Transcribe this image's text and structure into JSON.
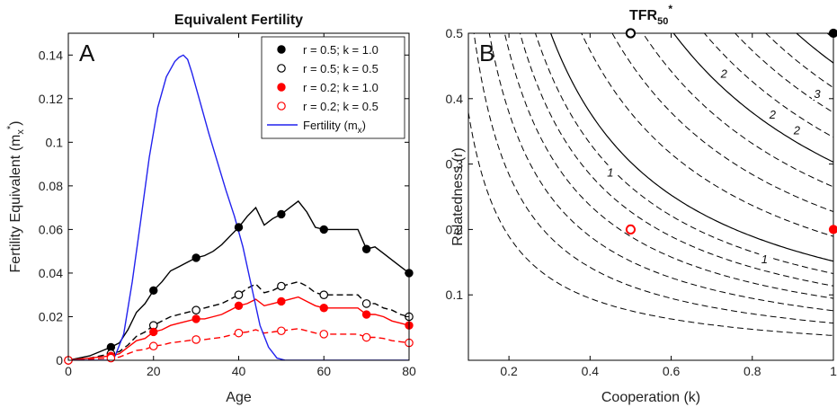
{
  "chart_data": [
    {
      "panel": "A",
      "type": "line",
      "title": "Equivalent Fertility",
      "xlabel": "Age",
      "ylabel": "Fertility Equivalent (m",
      "ylabel_sub": "x",
      "ylabel_sup": "*",
      "ylabel_end": ")",
      "xlim": [
        0,
        80
      ],
      "ylim": [
        0,
        0.15
      ],
      "xticks": [
        0,
        20,
        40,
        60,
        80
      ],
      "yticks": [
        0,
        0.02,
        0.04,
        0.06,
        0.08,
        0.1,
        0.12,
        0.14
      ],
      "ytick_labels": [
        "0",
        "0.02",
        "0.04",
        "0.06",
        "0.08",
        "0.1",
        "0.12",
        "0.14"
      ],
      "legend_position": "top-right",
      "series": [
        {
          "name": "r = 0.5; k = 1.0",
          "color": "#000000",
          "dash": false,
          "marker": "filled",
          "x": [
            0,
            5,
            10,
            12,
            14,
            16,
            18,
            20,
            22,
            24,
            26,
            28,
            30,
            32,
            34,
            36,
            38,
            40,
            42,
            44,
            46,
            48,
            50,
            52,
            54,
            56,
            58,
            60,
            62,
            64,
            66,
            68,
            70,
            72,
            74,
            76,
            78,
            80
          ],
          "y": [
            0,
            0.002,
            0.006,
            0.008,
            0.014,
            0.022,
            0.026,
            0.032,
            0.036,
            0.041,
            0.043,
            0.045,
            0.047,
            0.048,
            0.05,
            0.053,
            0.057,
            0.061,
            0.066,
            0.07,
            0.062,
            0.065,
            0.067,
            0.07,
            0.073,
            0.068,
            0.061,
            0.06,
            0.06,
            0.06,
            0.06,
            0.06,
            0.051,
            0.052,
            0.049,
            0.046,
            0.043,
            0.04
          ],
          "marker_x": [
            0,
            10,
            20,
            30,
            40,
            50,
            60,
            70,
            80
          ],
          "marker_y": [
            0,
            0.006,
            0.032,
            0.047,
            0.061,
            0.067,
            0.06,
            0.051,
            0.04
          ]
        },
        {
          "name": "r = 0.5; k = 0.5",
          "color": "#000000",
          "dash": true,
          "marker": "open",
          "x": [
            0,
            5,
            10,
            12,
            14,
            16,
            18,
            20,
            22,
            24,
            26,
            28,
            30,
            32,
            34,
            36,
            38,
            40,
            42,
            44,
            46,
            48,
            50,
            52,
            54,
            56,
            58,
            60,
            62,
            64,
            66,
            68,
            70,
            72,
            74,
            76,
            78,
            80
          ],
          "y": [
            0,
            0.001,
            0.003,
            0.004,
            0.007,
            0.011,
            0.013,
            0.016,
            0.018,
            0.02,
            0.021,
            0.022,
            0.023,
            0.024,
            0.025,
            0.026,
            0.028,
            0.03,
            0.033,
            0.035,
            0.031,
            0.032,
            0.034,
            0.035,
            0.036,
            0.034,
            0.031,
            0.03,
            0.03,
            0.03,
            0.03,
            0.03,
            0.026,
            0.026,
            0.024,
            0.023,
            0.021,
            0.02
          ],
          "marker_x": [
            0,
            10,
            20,
            30,
            40,
            50,
            60,
            70,
            80
          ],
          "marker_y": [
            0,
            0.003,
            0.016,
            0.023,
            0.03,
            0.034,
            0.03,
            0.026,
            0.02
          ]
        },
        {
          "name": "r = 0.2; k = 1.0",
          "color": "#ff0000",
          "dash": false,
          "marker": "filled",
          "x": [
            0,
            5,
            10,
            12,
            14,
            16,
            18,
            20,
            22,
            24,
            26,
            28,
            30,
            32,
            34,
            36,
            38,
            40,
            42,
            44,
            46,
            48,
            50,
            52,
            54,
            56,
            58,
            60,
            62,
            64,
            66,
            68,
            70,
            72,
            74,
            76,
            78,
            80
          ],
          "y": [
            0,
            0.001,
            0.002,
            0.003,
            0.006,
            0.009,
            0.01,
            0.013,
            0.014,
            0.016,
            0.017,
            0.018,
            0.019,
            0.019,
            0.02,
            0.021,
            0.023,
            0.025,
            0.026,
            0.028,
            0.025,
            0.026,
            0.027,
            0.028,
            0.029,
            0.027,
            0.025,
            0.024,
            0.024,
            0.024,
            0.024,
            0.024,
            0.021,
            0.021,
            0.02,
            0.018,
            0.017,
            0.016
          ],
          "marker_x": [
            0,
            10,
            20,
            30,
            40,
            50,
            60,
            70,
            80
          ],
          "marker_y": [
            0,
            0.002,
            0.013,
            0.019,
            0.025,
            0.027,
            0.024,
            0.021,
            0.016
          ]
        },
        {
          "name": "r = 0.2; k = 0.5",
          "color": "#ff0000",
          "dash": true,
          "marker": "open",
          "x": [
            0,
            5,
            10,
            12,
            14,
            16,
            18,
            20,
            22,
            24,
            26,
            28,
            30,
            32,
            34,
            36,
            38,
            40,
            42,
            44,
            46,
            48,
            50,
            52,
            54,
            56,
            58,
            60,
            62,
            64,
            66,
            68,
            70,
            72,
            74,
            76,
            78,
            80
          ],
          "y": [
            0,
            0.0005,
            0.001,
            0.0015,
            0.003,
            0.0045,
            0.005,
            0.0065,
            0.007,
            0.008,
            0.0085,
            0.009,
            0.0095,
            0.0095,
            0.01,
            0.0105,
            0.0115,
            0.0125,
            0.013,
            0.014,
            0.0125,
            0.013,
            0.0135,
            0.014,
            0.0145,
            0.0135,
            0.0125,
            0.012,
            0.012,
            0.012,
            0.012,
            0.012,
            0.0105,
            0.0105,
            0.01,
            0.009,
            0.0085,
            0.008
          ],
          "marker_x": [
            0,
            10,
            20,
            30,
            40,
            50,
            60,
            70,
            80
          ],
          "marker_y": [
            0,
            0.001,
            0.0065,
            0.0095,
            0.0125,
            0.0135,
            0.012,
            0.0105,
            0.008
          ]
        },
        {
          "name": "Fertility (m",
          "name_sub": "x",
          "name_end": ")",
          "color": "#2222ee",
          "dash": false,
          "marker": "none",
          "x": [
            0,
            9,
            11,
            13,
            15,
            17,
            19,
            21,
            23,
            25,
            26,
            27,
            28,
            29,
            31,
            33,
            35,
            37,
            39,
            41,
            43,
            45,
            47,
            49,
            51,
            60,
            70,
            80
          ],
          "y": [
            0,
            0,
            0.002,
            0.012,
            0.036,
            0.064,
            0.093,
            0.116,
            0.13,
            0.137,
            0.139,
            0.14,
            0.138,
            0.132,
            0.118,
            0.104,
            0.091,
            0.078,
            0.066,
            0.052,
            0.034,
            0.016,
            0.006,
            0.001,
            0,
            0,
            0,
            0
          ]
        }
      ]
    },
    {
      "panel": "B",
      "type": "contour",
      "title": "TFR",
      "title_sub": "50",
      "title_sup": "*",
      "xlabel": "Cooperation (k)",
      "ylabel": "Relatedness (r)",
      "xlim": [
        0.1,
        1.0
      ],
      "ylim": [
        0.0,
        0.5
      ],
      "xticks": [
        0.2,
        0.4,
        0.6,
        0.8,
        1
      ],
      "xtick_labels": [
        "0.2",
        "0.4",
        "0.6",
        "0.8",
        "1"
      ],
      "yticks": [
        0.1,
        0.2,
        0.3,
        0.4,
        0.5
      ],
      "ytick_labels": [
        "0.1",
        "0.2",
        "0.3",
        "0.4",
        "0.5"
      ],
      "contour_levels": [
        0.25,
        0.375,
        0.5,
        0.625,
        0.75,
        0.875,
        1.0,
        1.25,
        1.5,
        1.75,
        2.0,
        2.25,
        2.5,
        2.75,
        3.0,
        3.25
      ],
      "solid_levels": [
        1.0,
        2.0,
        3.0
      ],
      "contour_labels": [
        {
          "text": "1",
          "k": 0.45,
          "r": 0.2875
        },
        {
          "text": "1",
          "k": 0.83,
          "r": 0.1555
        },
        {
          "text": "2",
          "k": 0.73,
          "r": 0.4386
        },
        {
          "text": "2",
          "k": 0.91,
          "r": 0.3521
        },
        {
          "text": "2",
          "k": 0.85,
          "r": 0.3765
        },
        {
          "text": "3",
          "k": 0.96,
          "r": 0.408
        }
      ],
      "points": [
        {
          "k": 0.5,
          "r": 0.5,
          "style": "open",
          "color": "#000000"
        },
        {
          "k": 1.0,
          "r": 0.5,
          "style": "filled",
          "color": "#000000"
        },
        {
          "k": 0.5,
          "r": 0.2,
          "style": "open",
          "color": "#ff0000"
        },
        {
          "k": 1.0,
          "r": 0.2,
          "style": "filled",
          "color": "#ff0000"
        }
      ]
    }
  ],
  "panel_labels": {
    "a": "A",
    "b": "B"
  }
}
